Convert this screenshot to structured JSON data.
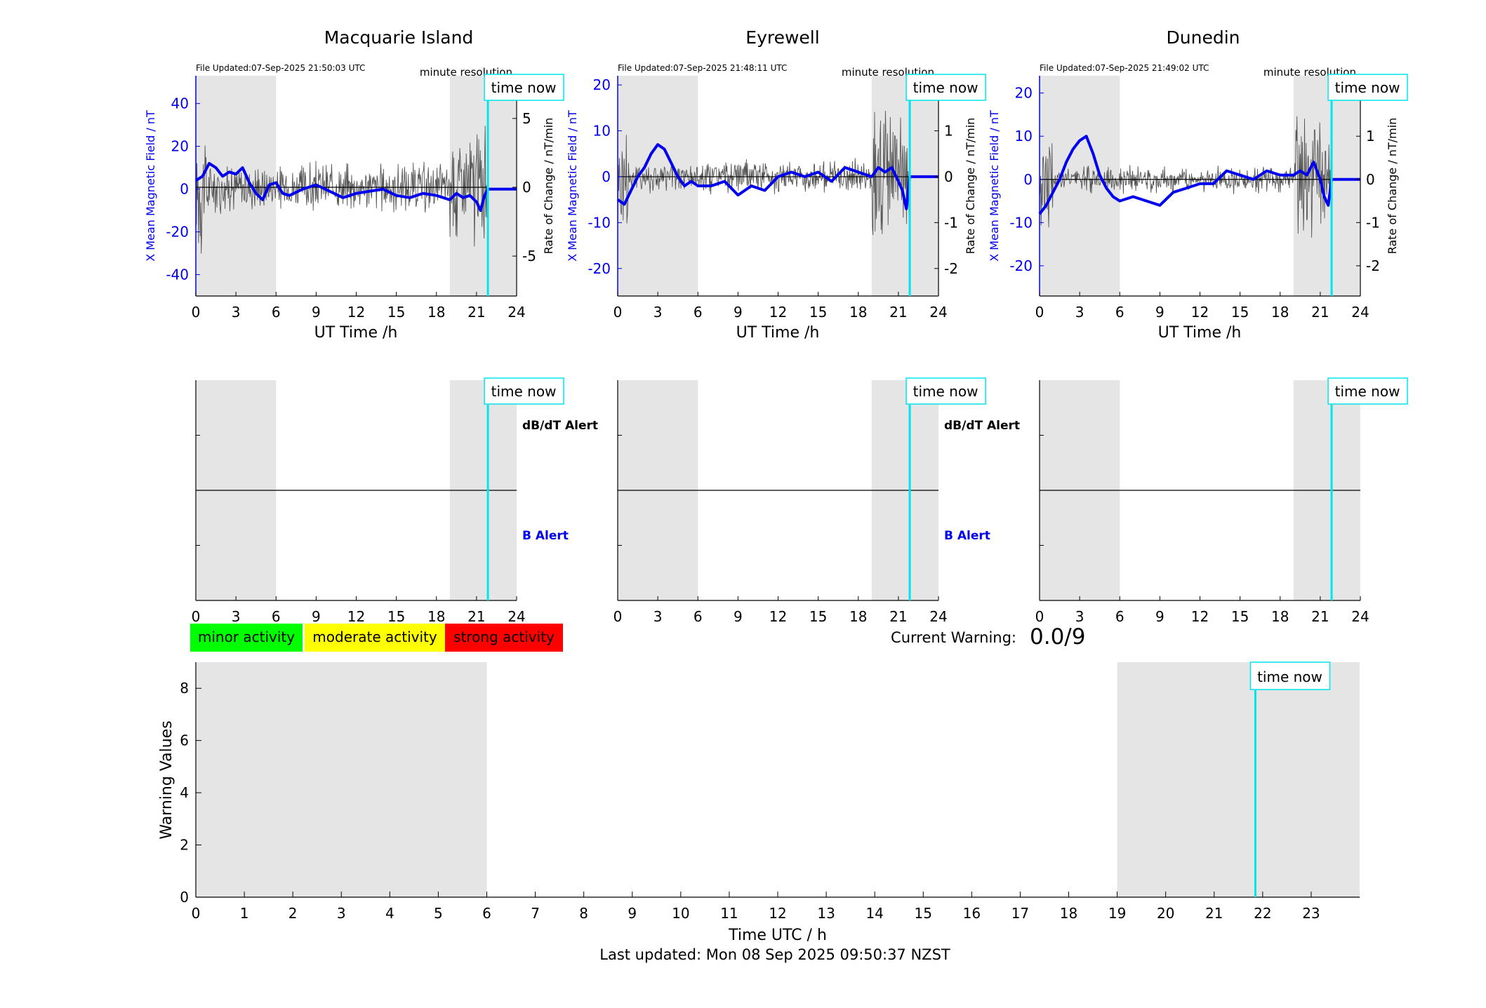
{
  "stations": [
    {
      "name": "Macquarie Island",
      "file_updated": "File Updated:07-Sep-2025 21:50:03 UTC",
      "resolution": "minute resolution",
      "time_now_label": "time now",
      "left_axis_label": "X Mean Magnetic Field / nT",
      "right_axis_label": "Rate of Change / nT/min",
      "x_label": "UT Time /h",
      "left_ylim": [
        -50,
        53
      ],
      "left_ticks": [
        -40,
        -20,
        0,
        20,
        40
      ],
      "right_ylim": [
        -7.9,
        8.1
      ],
      "right_ticks": [
        -5,
        0,
        5
      ],
      "x_ticks": [
        0,
        3,
        6,
        9,
        12,
        15,
        18,
        21,
        24
      ],
      "shade": [
        [
          0,
          6
        ],
        [
          19,
          24
        ]
      ],
      "time_now": 21.85,
      "field_series": [
        [
          0,
          4
        ],
        [
          0.5,
          6
        ],
        [
          1,
          12
        ],
        [
          1.5,
          10
        ],
        [
          2,
          6
        ],
        [
          2.5,
          8
        ],
        [
          3,
          7
        ],
        [
          3.5,
          10
        ],
        [
          4,
          3
        ],
        [
          4.5,
          -2
        ],
        [
          5,
          -5
        ],
        [
          5.5,
          2
        ],
        [
          6,
          3
        ],
        [
          6.5,
          -2
        ],
        [
          7,
          -3
        ],
        [
          8,
          0
        ],
        [
          9,
          2
        ],
        [
          10,
          -1
        ],
        [
          11,
          -4
        ],
        [
          12,
          -2
        ],
        [
          13,
          -1
        ],
        [
          14,
          0
        ],
        [
          15,
          -3
        ],
        [
          16,
          -4
        ],
        [
          17,
          -2
        ],
        [
          18,
          -3
        ],
        [
          19,
          -5
        ],
        [
          19.5,
          -2
        ],
        [
          20,
          -4
        ],
        [
          20.5,
          -3
        ],
        [
          21,
          -6
        ],
        [
          21.3,
          -10
        ],
        [
          21.6,
          -3
        ],
        [
          21.85,
          0
        ],
        [
          24,
          0
        ]
      ],
      "rate_amplitude": 1.5,
      "rate_burst": 4
    },
    {
      "name": "Eyrewell",
      "file_updated": "File Updated:07-Sep-2025 21:48:11 UTC",
      "resolution": "minute resolution",
      "time_now_label": "time now",
      "left_axis_label": "X Mean Magnetic Field / nT",
      "right_axis_label": "Rate of Change / nT/min",
      "x_label": "UT Time /h",
      "left_ylim": [
        -26,
        22
      ],
      "left_ticks": [
        -20,
        -10,
        0,
        10,
        20
      ],
      "right_ylim": [
        -2.6,
        2.2
      ],
      "right_ticks": [
        -2,
        -1,
        0,
        1,
        2
      ],
      "x_ticks": [
        0,
        3,
        6,
        9,
        12,
        15,
        18,
        21,
        24
      ],
      "shade": [
        [
          0,
          6
        ],
        [
          19,
          24
        ]
      ],
      "time_now": 21.85,
      "field_series": [
        [
          0,
          -5
        ],
        [
          0.5,
          -6
        ],
        [
          1,
          -3
        ],
        [
          1.5,
          0
        ],
        [
          2,
          2
        ],
        [
          2.5,
          5
        ],
        [
          3,
          7
        ],
        [
          3.5,
          6
        ],
        [
          4,
          3
        ],
        [
          4.5,
          0
        ],
        [
          5,
          -2
        ],
        [
          5.5,
          -1
        ],
        [
          6,
          -2
        ],
        [
          7,
          -2
        ],
        [
          8,
          -1
        ],
        [
          9,
          -4
        ],
        [
          10,
          -2
        ],
        [
          11,
          -3
        ],
        [
          12,
          0
        ],
        [
          13,
          1
        ],
        [
          14,
          0
        ],
        [
          15,
          1
        ],
        [
          16,
          -1
        ],
        [
          17,
          2
        ],
        [
          18,
          1
        ],
        [
          19,
          0
        ],
        [
          19.5,
          2
        ],
        [
          20,
          1
        ],
        [
          20.5,
          2
        ],
        [
          21,
          -1
        ],
        [
          21.3,
          -3
        ],
        [
          21.6,
          -7
        ],
        [
          21.85,
          0
        ],
        [
          24,
          0
        ]
      ],
      "rate_amplitude": 0.3,
      "rate_burst": 1.2
    },
    {
      "name": "Dunedin",
      "file_updated": "File Updated:07-Sep-2025 21:49:02 UTC",
      "resolution": "minute resolution",
      "time_now_label": "time now",
      "left_axis_label": "X Mean Magnetic Field / nT",
      "right_axis_label": "Rate of Change / nT/min",
      "x_label": "UT Time /h",
      "left_ylim": [
        -27,
        24
      ],
      "left_ticks": [
        -20,
        -10,
        0,
        10,
        20
      ],
      "right_ylim": [
        -2.7,
        2.4
      ],
      "right_ticks": [
        -2,
        -1,
        0,
        1,
        2
      ],
      "x_ticks": [
        0,
        3,
        6,
        9,
        12,
        15,
        18,
        21,
        24
      ],
      "shade": [
        [
          0,
          6
        ],
        [
          19,
          24
        ]
      ],
      "time_now": 21.85,
      "field_series": [
        [
          0,
          -8
        ],
        [
          0.5,
          -6
        ],
        [
          1,
          -3
        ],
        [
          1.5,
          0
        ],
        [
          2,
          4
        ],
        [
          2.5,
          7
        ],
        [
          3,
          9
        ],
        [
          3.5,
          10
        ],
        [
          4,
          6
        ],
        [
          4.5,
          1
        ],
        [
          5,
          -2
        ],
        [
          5.5,
          -4
        ],
        [
          6,
          -5
        ],
        [
          7,
          -4
        ],
        [
          8,
          -5
        ],
        [
          9,
          -6
        ],
        [
          10,
          -3
        ],
        [
          11,
          -2
        ],
        [
          12,
          -1
        ],
        [
          13,
          -1
        ],
        [
          14,
          2
        ],
        [
          15,
          1
        ],
        [
          16,
          0
        ],
        [
          17,
          2
        ],
        [
          18,
          1
        ],
        [
          19,
          1
        ],
        [
          19.5,
          2
        ],
        [
          20,
          1
        ],
        [
          20.5,
          4
        ],
        [
          21,
          0
        ],
        [
          21.3,
          -4
        ],
        [
          21.6,
          -6
        ],
        [
          21.85,
          0
        ],
        [
          24,
          0
        ]
      ],
      "rate_amplitude": 0.25,
      "rate_burst": 1.2
    }
  ],
  "alert_panels": [
    {
      "time_now_label": "time now",
      "dbdt_label": "dB/dT Alert",
      "b_label": "B Alert"
    },
    {
      "time_now_label": "time now",
      "dbdt_label": "dB/dT Alert",
      "b_label": "B Alert"
    },
    {
      "time_now_label": "time now",
      "dbdt_label": "",
      "b_label": ""
    }
  ],
  "legend": {
    "minor": "minor activity",
    "moderate": "moderate activity",
    "strong": "strong activity",
    "colors": {
      "minor": "#00ff00",
      "moderate": "#ffff00",
      "strong": "#ff0000"
    }
  },
  "current_warning": {
    "label": "Current Warning:",
    "value": "0.0/9"
  },
  "warning_chart": {
    "time_now_label": "time now",
    "y_label": "Warning Values",
    "x_label": "Time UTC / h",
    "ylim": [
      0,
      9
    ],
    "y_ticks": [
      0,
      2,
      4,
      6,
      8
    ],
    "xlim": [
      0,
      24
    ],
    "x_ticks": [
      0,
      1,
      2,
      3,
      4,
      5,
      6,
      7,
      8,
      9,
      10,
      11,
      12,
      13,
      14,
      15,
      16,
      17,
      18,
      19,
      20,
      21,
      22,
      23
    ],
    "shade": [
      [
        0,
        6
      ],
      [
        19,
        24
      ]
    ],
    "time_now": 21.85
  },
  "chart_data": [
    {
      "type": "line",
      "title": "Macquarie Island",
      "xlabel": "UT Time /h",
      "ylabel": "X Mean Magnetic Field / nT",
      "xlim": [
        0,
        24
      ],
      "ylim": [
        -50,
        53
      ],
      "series": [
        {
          "name": "X Mean Magnetic Field / nT",
          "x": [
            0,
            1,
            2,
            3,
            4,
            5,
            6,
            8,
            10,
            12,
            14,
            16,
            18,
            20,
            21,
            21.3,
            21.85,
            24
          ],
          "values": [
            4,
            12,
            6,
            7,
            3,
            -5,
            3,
            0,
            -1,
            -2,
            0,
            -4,
            -3,
            -4,
            -6,
            -10,
            0,
            0
          ]
        }
      ]
    },
    {
      "type": "line",
      "title": "Eyrewell",
      "xlabel": "UT Time /h",
      "ylabel": "X Mean Magnetic Field / nT",
      "xlim": [
        0,
        24
      ],
      "ylim": [
        -26,
        22
      ],
      "series": [
        {
          "name": "X Mean Magnetic Field / nT",
          "x": [
            0,
            1,
            2,
            3,
            4,
            5,
            6,
            8,
            10,
            12,
            14,
            16,
            18,
            20,
            21,
            21.6,
            21.85,
            24
          ],
          "values": [
            -5,
            -3,
            2,
            7,
            3,
            -2,
            -2,
            -1,
            -2,
            0,
            0,
            -1,
            1,
            1,
            -1,
            -7,
            0,
            0
          ]
        }
      ]
    },
    {
      "type": "line",
      "title": "Dunedin",
      "xlabel": "UT Time /h",
      "ylabel": "X Mean Magnetic Field / nT",
      "xlim": [
        0,
        24
      ],
      "ylim": [
        -27,
        24
      ],
      "series": [
        {
          "name": "X Mean Magnetic Field / nT",
          "x": [
            0,
            1,
            2,
            3,
            3.5,
            4,
            5,
            6,
            8,
            10,
            12,
            14,
            16,
            18,
            20,
            21,
            21.6,
            21.85,
            24
          ],
          "values": [
            -8,
            -3,
            4,
            9,
            10,
            6,
            -2,
            -5,
            -5,
            -3,
            -1,
            2,
            0,
            1,
            1,
            0,
            -6,
            0,
            0
          ]
        }
      ]
    },
    {
      "type": "bar",
      "xlabel": "Time UTC / h",
      "ylabel": "Warning Values",
      "xlim": [
        0,
        24
      ],
      "ylim": [
        0,
        9
      ],
      "categories": [],
      "values": []
    }
  ],
  "footer": "Last updated: Mon 08 Sep 2025 09:50:37 NZST"
}
